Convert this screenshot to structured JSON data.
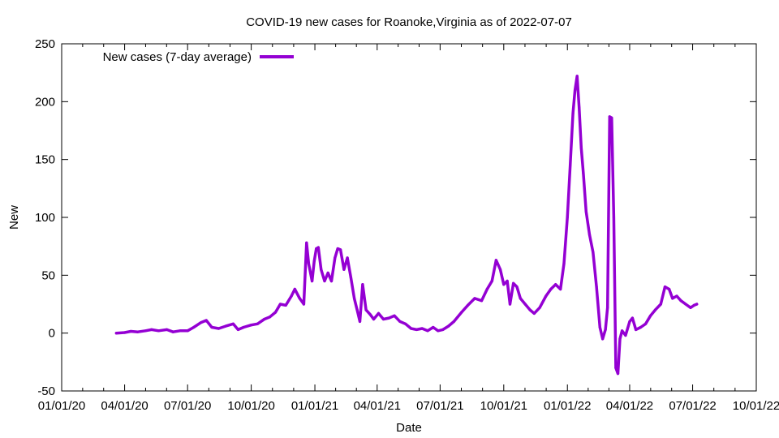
{
  "chart_data": {
    "type": "line",
    "title": "COVID-19 new cases for Roanoke,Virginia as of 2022-07-07",
    "xlabel": "Date",
    "ylabel": "New",
    "xlim": [
      "2020-01-01",
      "2022-10-01"
    ],
    "ylim": [
      -50,
      250
    ],
    "x_ticks": [
      "01/01/20",
      "04/01/20",
      "07/01/20",
      "10/01/20",
      "01/01/21",
      "04/01/21",
      "07/01/21",
      "10/01/21",
      "01/01/22",
      "04/01/22",
      "07/01/22",
      "10/01/22"
    ],
    "x_tick_dates": [
      "2020-01-01",
      "2020-04-01",
      "2020-07-01",
      "2020-10-01",
      "2021-01-01",
      "2021-04-01",
      "2021-07-01",
      "2021-10-01",
      "2022-01-01",
      "2022-04-01",
      "2022-07-01",
      "2022-10-01"
    ],
    "y_ticks": [
      -50,
      0,
      50,
      100,
      150,
      200,
      250
    ],
    "legend": {
      "position": "top-left",
      "entries": [
        "New cases (7-day average)"
      ]
    },
    "series": [
      {
        "name": "New cases (7-day average)",
        "color": "#9400d3",
        "points": [
          [
            "2020-03-20",
            0
          ],
          [
            "2020-04-01",
            0.5
          ],
          [
            "2020-04-10",
            1.5
          ],
          [
            "2020-04-20",
            1
          ],
          [
            "2020-05-01",
            2
          ],
          [
            "2020-05-10",
            3
          ],
          [
            "2020-05-20",
            2
          ],
          [
            "2020-06-01",
            3
          ],
          [
            "2020-06-10",
            1
          ],
          [
            "2020-06-20",
            2
          ],
          [
            "2020-07-01",
            2
          ],
          [
            "2020-07-10",
            5
          ],
          [
            "2020-07-20",
            9
          ],
          [
            "2020-07-28",
            11
          ],
          [
            "2020-08-05",
            5
          ],
          [
            "2020-08-15",
            4
          ],
          [
            "2020-08-25",
            6
          ],
          [
            "2020-09-05",
            8
          ],
          [
            "2020-09-12",
            3
          ],
          [
            "2020-09-20",
            5
          ],
          [
            "2020-10-01",
            7
          ],
          [
            "2020-10-10",
            8
          ],
          [
            "2020-10-20",
            12
          ],
          [
            "2020-10-28",
            14
          ],
          [
            "2020-11-05",
            18
          ],
          [
            "2020-11-12",
            25
          ],
          [
            "2020-11-20",
            24
          ],
          [
            "2020-11-28",
            32
          ],
          [
            "2020-12-03",
            38
          ],
          [
            "2020-12-10",
            30
          ],
          [
            "2020-12-16",
            25
          ],
          [
            "2020-12-20",
            78
          ],
          [
            "2020-12-23",
            60
          ],
          [
            "2020-12-28",
            45
          ],
          [
            "2020-12-31",
            62
          ],
          [
            "2021-01-03",
            73
          ],
          [
            "2021-01-06",
            74
          ],
          [
            "2021-01-10",
            55
          ],
          [
            "2021-01-15",
            45
          ],
          [
            "2021-01-20",
            52
          ],
          [
            "2021-01-25",
            45
          ],
          [
            "2021-01-30",
            65
          ],
          [
            "2021-02-03",
            73
          ],
          [
            "2021-02-07",
            72
          ],
          [
            "2021-02-12",
            55
          ],
          [
            "2021-02-17",
            65
          ],
          [
            "2021-02-22",
            48
          ],
          [
            "2021-02-27",
            30
          ],
          [
            "2021-03-03",
            20
          ],
          [
            "2021-03-07",
            10
          ],
          [
            "2021-03-11",
            42
          ],
          [
            "2021-03-16",
            20
          ],
          [
            "2021-03-22",
            16
          ],
          [
            "2021-03-27",
            12
          ],
          [
            "2021-04-03",
            17
          ],
          [
            "2021-04-10",
            12
          ],
          [
            "2021-04-18",
            13
          ],
          [
            "2021-04-26",
            15
          ],
          [
            "2021-05-04",
            10
          ],
          [
            "2021-05-12",
            8
          ],
          [
            "2021-05-20",
            4
          ],
          [
            "2021-05-28",
            3
          ],
          [
            "2021-06-05",
            4
          ],
          [
            "2021-06-13",
            2
          ],
          [
            "2021-06-21",
            5
          ],
          [
            "2021-06-28",
            2
          ],
          [
            "2021-07-05",
            3
          ],
          [
            "2021-07-13",
            6
          ],
          [
            "2021-07-21",
            10
          ],
          [
            "2021-08-01",
            18
          ],
          [
            "2021-08-10",
            24
          ],
          [
            "2021-08-20",
            30
          ],
          [
            "2021-08-30",
            28
          ],
          [
            "2021-09-07",
            38
          ],
          [
            "2021-09-14",
            45
          ],
          [
            "2021-09-20",
            63
          ],
          [
            "2021-09-26",
            55
          ],
          [
            "2021-10-01",
            42
          ],
          [
            "2021-10-06",
            45
          ],
          [
            "2021-10-10",
            25
          ],
          [
            "2021-10-15",
            43
          ],
          [
            "2021-10-20",
            40
          ],
          [
            "2021-10-25",
            30
          ],
          [
            "2021-11-01",
            25
          ],
          [
            "2021-11-08",
            20
          ],
          [
            "2021-11-14",
            17
          ],
          [
            "2021-11-22",
            22
          ],
          [
            "2021-12-01",
            32
          ],
          [
            "2021-12-08",
            38
          ],
          [
            "2021-12-15",
            42
          ],
          [
            "2021-12-22",
            38
          ],
          [
            "2021-12-27",
            60
          ],
          [
            "2022-01-01",
            100
          ],
          [
            "2022-01-05",
            145
          ],
          [
            "2022-01-09",
            190
          ],
          [
            "2022-01-12",
            210
          ],
          [
            "2022-01-15",
            222
          ],
          [
            "2022-01-18",
            195
          ],
          [
            "2022-01-21",
            160
          ],
          [
            "2022-01-24",
            138
          ],
          [
            "2022-01-28",
            105
          ],
          [
            "2022-02-02",
            85
          ],
          [
            "2022-02-07",
            70
          ],
          [
            "2022-02-12",
            40
          ],
          [
            "2022-02-17",
            5
          ],
          [
            "2022-02-21",
            -5
          ],
          [
            "2022-02-25",
            3
          ],
          [
            "2022-02-28",
            22
          ],
          [
            "2022-03-03",
            187
          ],
          [
            "2022-03-06",
            186
          ],
          [
            "2022-03-09",
            100
          ],
          [
            "2022-03-12",
            -30
          ],
          [
            "2022-03-15",
            -35
          ],
          [
            "2022-03-18",
            -5
          ],
          [
            "2022-03-21",
            2
          ],
          [
            "2022-03-26",
            -2
          ],
          [
            "2022-04-01",
            10
          ],
          [
            "2022-04-05",
            13
          ],
          [
            "2022-04-10",
            3
          ],
          [
            "2022-04-17",
            5
          ],
          [
            "2022-04-24",
            8
          ],
          [
            "2022-05-01",
            15
          ],
          [
            "2022-05-08",
            20
          ],
          [
            "2022-05-16",
            25
          ],
          [
            "2022-05-22",
            40
          ],
          [
            "2022-05-28",
            38
          ],
          [
            "2022-06-02",
            30
          ],
          [
            "2022-06-08",
            32
          ],
          [
            "2022-06-14",
            28
          ],
          [
            "2022-06-21",
            25
          ],
          [
            "2022-06-28",
            22
          ],
          [
            "2022-07-03",
            24
          ],
          [
            "2022-07-07",
            25
          ]
        ]
      }
    ]
  }
}
